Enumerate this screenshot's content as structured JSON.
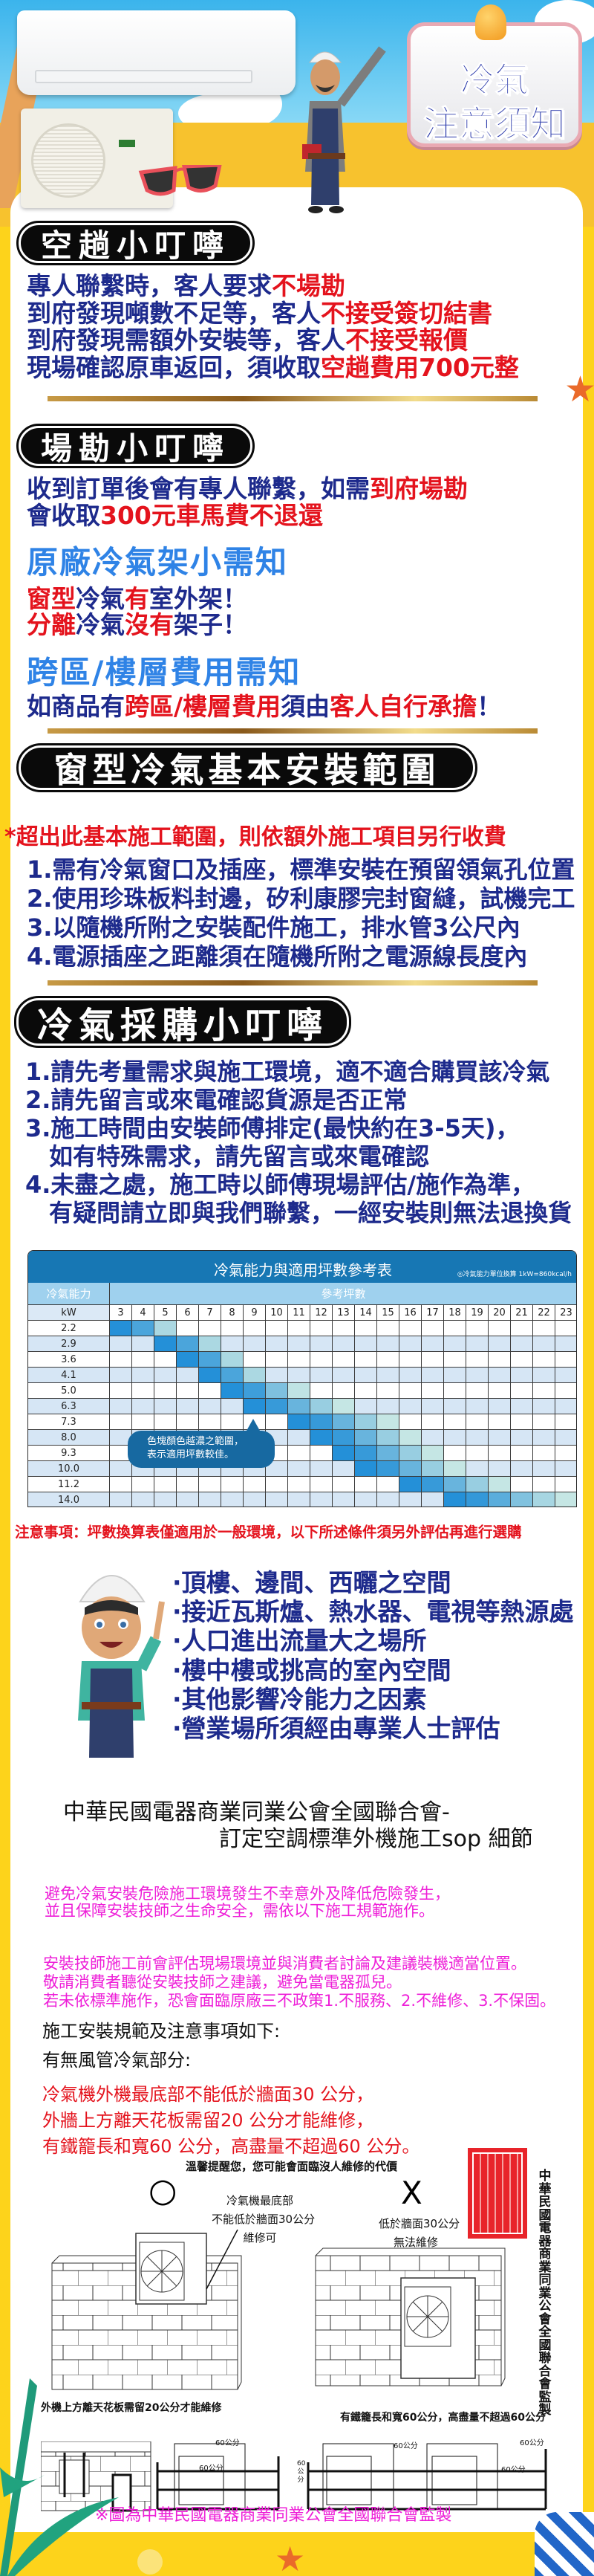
{
  "colors": {
    "navy": "#1d2a8c",
    "red": "#e4131d",
    "blue": "#2f83e6",
    "magenta": "#ee1fd8",
    "yellow": "#fdd31b",
    "table_dark": "#2490d8",
    "table_light": "#c5e6e4"
  },
  "hero": {
    "badge_line1": "冷氣",
    "badge_line2": "注意須知",
    "icons": [
      "air-conditioner-indoor",
      "air-conditioner-outdoor",
      "sunglasses",
      "worker",
      "bell"
    ]
  },
  "s1": {
    "title": "空趟小叮嚀",
    "lines": [
      [
        {
          "t": "專人聯繫時，客人要求"
        },
        {
          "t": "不場勘",
          "hl": true
        }
      ],
      [
        {
          "t": "到府發現噸數不足等，客人"
        },
        {
          "t": "不接受簽切結書",
          "hl": true
        }
      ],
      [
        {
          "t": "到府發現需額外安裝等，客人"
        },
        {
          "t": "不接受報價",
          "hl": true
        }
      ],
      [
        {
          "t": "現場確認原車返回，須收取"
        },
        {
          "t": "空趟費用700元整",
          "hl": true
        }
      ]
    ]
  },
  "s2": {
    "title": "場勘小叮嚀",
    "lines": [
      [
        {
          "t": "收到訂單後會有專人聯繫，如需"
        },
        {
          "t": "到府場勘",
          "hl": true
        }
      ],
      [
        {
          "t": "會收取"
        },
        {
          "t": "300元車馬費不退還",
          "hl": true
        }
      ]
    ],
    "rack_title": "原廠冷氣架小需知",
    "rack_lines": [
      [
        {
          "t": "窗型",
          "hl": true
        },
        {
          "t": "冷氣"
        },
        {
          "t": "有",
          "hl": true
        },
        {
          "t": "室外架！"
        }
      ],
      [
        {
          "t": "分離",
          "hl": true
        },
        {
          "t": "冷氣"
        },
        {
          "t": "沒有",
          "hl": true
        },
        {
          "t": "架子！"
        }
      ]
    ],
    "fee_title": "跨區/樓層費用需知",
    "fee_lines": [
      [
        {
          "t": "如商品有"
        },
        {
          "t": "跨區/樓層費用",
          "hl": true
        },
        {
          "t": "須由"
        },
        {
          "t": "客人自行承擔",
          "hl": true
        },
        {
          "t": "！"
        }
      ]
    ]
  },
  "s3": {
    "title": "窗型冷氣基本安裝範圍",
    "note": "*超出此基本施工範圍，則依額外施工項目另行收費",
    "items": [
      "1.需有冷氣窗口及插座，標準安裝在預留領氣孔位置",
      "2.使用珍珠板料封邊，矽利康膠完封窗縫，試機完工",
      "3.以隨機所附之安裝配件施工，排水管3公尺內",
      "4.電源插座之距離須在隨機所附之電源線長度內"
    ]
  },
  "s4": {
    "title": "冷氣採購小叮嚀",
    "items": [
      "1.請先考量需求與施工環境，適不適合購買該冷氣",
      "2.請先留言或來電確認貨源是否正常",
      "3.施工時間由安裝師傅排定(最快約在3-5天)，",
      "　如有特殊需求，請先留言或來電確認",
      "4.未盡之處，施工時以師傅現場評估/施作為準，",
      "　有疑問請立即與我們聯繫，一經安裝則無法退換貨"
    ]
  },
  "chart_data": {
    "type": "heatmap",
    "title": "冷氣能力與適用坪數參考表",
    "note": "◎冷氣能力單位換算 1kW=860kcal/h",
    "row_header": "冷氣能力",
    "col_header": "參考坪數",
    "row_unit": "kW",
    "columns": [
      3,
      4,
      5,
      6,
      7,
      8,
      9,
      10,
      11,
      12,
      13,
      14,
      15,
      16,
      17,
      18,
      19,
      20,
      21,
      22,
      23
    ],
    "rows": [
      {
        "kw": "2.2",
        "range": [
          3,
          5
        ]
      },
      {
        "kw": "2.9",
        "range": [
          5,
          7
        ]
      },
      {
        "kw": "3.6",
        "range": [
          6,
          8
        ]
      },
      {
        "kw": "4.1",
        "range": [
          7,
          9
        ]
      },
      {
        "kw": "5.0",
        "range": [
          8,
          11
        ]
      },
      {
        "kw": "6.3",
        "range": [
          9,
          13
        ]
      },
      {
        "kw": "7.3",
        "range": [
          11,
          15
        ]
      },
      {
        "kw": "8.0",
        "range": [
          12,
          16
        ]
      },
      {
        "kw": "9.3",
        "range": [
          13,
          17
        ]
      },
      {
        "kw": "10.0",
        "range": [
          14,
          18
        ]
      },
      {
        "kw": "11.2",
        "range": [
          16,
          20
        ]
      },
      {
        "kw": "14.0",
        "range": [
          18,
          23
        ]
      }
    ],
    "callout": [
      "色塊顏色越濃之範圍，",
      "表示適用坪數較佳。"
    ]
  },
  "warning": "注意事項：坪數換算表僅適用於一般環境，以下所述條件須另外評估再進行選購",
  "conditions": [
    "·頂樓、邊間、西曬之空間",
    "·接近瓦斯爐、熱水器、電視等熱源處",
    "·人口進出流量大之場所",
    "·樓中樓或挑高的室內空間",
    "·其他影響冷能力之因素",
    "·營業場所須經由專業人士評估"
  ],
  "sop": {
    "title1": "中華民國電器商業同業公會全國聯合會-",
    "title2": "訂定空調標準外機施工sop 細節",
    "pink1": [
      "避免冷氣安裝危險施工環境發生不幸意外及降低危險發生，",
      "並且保障安裝技師之生命安全，需依以下施工規範施作。"
    ],
    "pink2": [
      "安裝技師施工前會評估現場環境並與消費者討論及建議裝機適當位置。",
      "敬請消費者聽從安裝技師之建議，避免當電器孤兒。",
      "若未依標準施作，恐會面臨原廠三不政策1.不服務、2.不維修、3.不保固。"
    ],
    "heading1": "施工安裝規範及注意事項如下:",
    "heading2": "有無風管冷氣部分:",
    "red": [
      "冷氣機外機最底部不能低於牆面30 公分，",
      "外牆上方離天花板需留20 公分才能維修，",
      "有鐵籠長和寬60 公分，高盡量不超過60 公分。"
    ],
    "diagram": {
      "reminder": "溫馨提醒您，您可能會面臨沒人維修的代價",
      "ok_mark": "○",
      "ng_mark": "X",
      "ok_text": [
        "冷氣機最底部",
        "不能低於牆面30公分",
        "維修可"
      ],
      "ng_text": [
        "低於牆面30公分",
        "無法維修"
      ],
      "ceiling_text": "外機上方離天花板需留20公分才能維修",
      "cage_text": "有鐵籠長和寬60公分，高盡量不超過60公分",
      "dim": "60公分",
      "dim_v": "60公分",
      "vertical": "中華民國電器商業同業公會全國聯合會監製",
      "seal": "中華民國電器商業同業公會全國聯合會"
    },
    "footer": "※圖為中華民國電器商業同業公會全國聯合會監製"
  }
}
